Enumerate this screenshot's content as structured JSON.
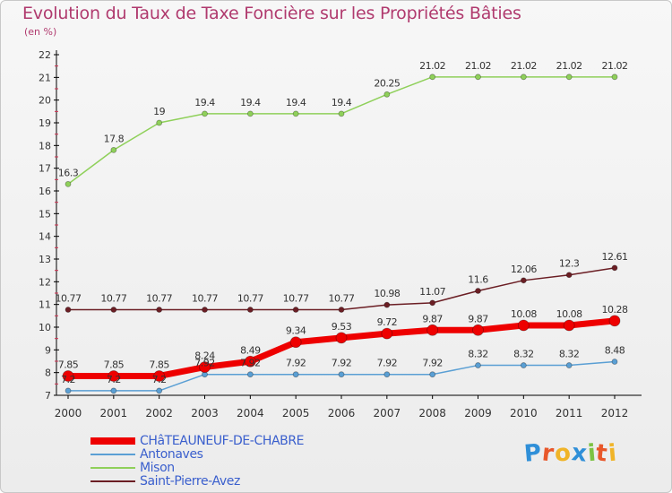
{
  "header": {
    "title": "Evolution du Taux de Taxe Foncière sur les Propriétés Bâties",
    "subtitle": "(en %)"
  },
  "logo": {
    "text": "Proxiti",
    "colors": [
      "#2f8fd8",
      "#e8572a",
      "#f0b428",
      "#2f8fd8",
      "#7cc242",
      "#e8572a",
      "#f0b428"
    ]
  },
  "chart_data": {
    "type": "line",
    "title": "Evolution du Taux de Taxe Foncière sur les Propriétés Bâties",
    "ylabel": "(en %)",
    "xlabel": "",
    "x": [
      "2000",
      "2001",
      "2002",
      "2003",
      "2004",
      "2005",
      "2006",
      "2007",
      "2008",
      "2009",
      "2010",
      "2011",
      "2012"
    ],
    "ylim": [
      7,
      22
    ],
    "yticks": [
      "7",
      "8",
      "9",
      "10",
      "11",
      "12",
      "13",
      "14",
      "15",
      "16",
      "17",
      "18",
      "19",
      "20",
      "21",
      "22"
    ],
    "grid": false,
    "legend_position": "bottom-left",
    "series": [
      {
        "name": "CHâTEAUNEUF-DE-CHABRE",
        "color": "#ee0000",
        "values": [
          7.85,
          7.85,
          7.85,
          8.24,
          8.49,
          9.34,
          9.53,
          9.72,
          9.87,
          9.87,
          10.08,
          10.08,
          10.28
        ],
        "labels": [
          "7.85",
          "7.85",
          "7.85",
          "8.24",
          "8.49",
          "9.34",
          "9.53",
          "9.72",
          "9.87",
          "9.87",
          "10.08",
          "10.08",
          "10.28"
        ]
      },
      {
        "name": "Antonaves",
        "color": "#5a9fd4",
        "values": [
          7.2,
          7.2,
          7.2,
          7.92,
          7.92,
          7.92,
          7.92,
          7.92,
          7.92,
          8.32,
          8.32,
          8.32,
          8.48
        ],
        "labels": [
          "7.2",
          "7.2",
          "7.2",
          "7.92",
          "7.92",
          "7.92",
          "7.92",
          "7.92",
          "7.92",
          "8.32",
          "8.32",
          "8.32",
          "8.48"
        ]
      },
      {
        "name": "Mison",
        "color": "#8fd05a",
        "values": [
          16.3,
          17.8,
          19,
          19.4,
          19.4,
          19.4,
          19.4,
          20.25,
          21.02,
          21.02,
          21.02,
          21.02,
          21.02
        ],
        "labels": [
          "16.3",
          "17.8",
          "19",
          "19.4",
          "19.4",
          "19.4",
          "19.4",
          "20.25",
          "21.02",
          "21.02",
          "21.02",
          "21.02",
          "21.02"
        ]
      },
      {
        "name": "Saint-Pierre-Avez",
        "color": "#6b1e24",
        "values": [
          10.77,
          10.77,
          10.77,
          10.77,
          10.77,
          10.77,
          10.77,
          10.98,
          11.07,
          11.6,
          12.06,
          12.3,
          12.61
        ],
        "labels": [
          "10.77",
          "10.77",
          "10.77",
          "10.77",
          "10.77",
          "10.77",
          "10.77",
          "10.98",
          "11.07",
          "11.6",
          "12.06",
          "12.3",
          "12.61"
        ]
      }
    ]
  }
}
